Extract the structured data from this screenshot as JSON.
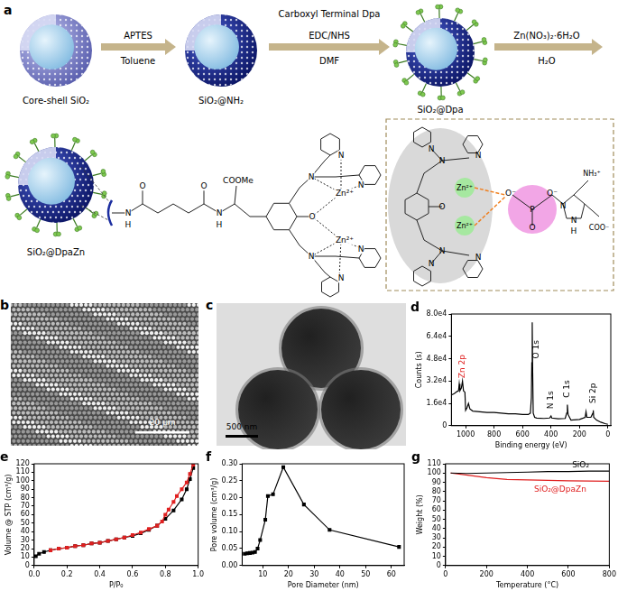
{
  "panels": {
    "a": {
      "label": "a",
      "particles": [
        "Core-shell SiO₂",
        "SiO₂@NH₂",
        "SiO₂@Dpa",
        "SiO₂@DpaZn"
      ],
      "steps": [
        {
          "reagent": "APTES",
          "solvent": "Toluene"
        },
        {
          "reagent": "Carboxyl Terminal Dpa",
          "coupling": "EDC/NHS",
          "solvent": "DMF"
        },
        {
          "reagent": "Zn(NO₃)₂·6H₂O",
          "solvent": "H₂O"
        }
      ],
      "ligand_atoms": [
        "N",
        "H",
        "O",
        "O",
        "N",
        "H",
        "COOMe",
        "O",
        "N",
        "N",
        "N",
        "N",
        "N",
        "N",
        "Zn²⁺",
        "Zn²⁺"
      ],
      "complex_atoms": [
        "N",
        "N",
        "N",
        "N",
        "N",
        "N",
        "O",
        "Zn²⁺",
        "Zn²⁺",
        "O⁻",
        "P",
        "O⁻",
        "O",
        "N",
        "N",
        "H",
        "NH₃⁺",
        "COO⁻"
      ]
    },
    "b": {
      "label": "b",
      "scale_bar": "20 μm"
    },
    "c": {
      "label": "c",
      "scale_bar": "500 nm"
    },
    "d": {
      "label": "d"
    },
    "e": {
      "label": "e"
    },
    "f": {
      "label": "f"
    },
    "g": {
      "label": "g"
    }
  },
  "chart_data": [
    {
      "type": "line",
      "xlabel": "Binding energy (eV)",
      "ylabel": "Counts (s)",
      "xlim": [
        1100,
        -20
      ],
      "ylim": [
        0,
        80000
      ],
      "xticks": [
        1000,
        800,
        600,
        400,
        200,
        0
      ],
      "yticks": [
        0,
        {
          "value": 16000,
          "label": "1.6e4"
        },
        {
          "value": 32000,
          "label": "3.2e4"
        },
        {
          "value": 48000,
          "label": "4.8e4"
        },
        {
          "value": 64000,
          "label": "6.4e4"
        },
        {
          "value": 80000,
          "label": "8.0e4"
        }
      ],
      "x": [
        1100,
        1080,
        1060,
        1050,
        1045,
        1040,
        1030,
        1022,
        1015,
        1005,
        1000,
        990,
        980,
        970,
        950,
        900,
        850,
        800,
        750,
        700,
        650,
        600,
        560,
        545,
        538,
        535,
        532,
        529,
        525,
        515,
        500,
        450,
        410,
        400,
        395,
        350,
        300,
        290,
        285,
        280,
        260,
        200,
        160,
        154,
        148,
        120,
        106,
        103,
        100,
        80,
        50,
        20,
        0
      ],
      "series": [
        {
          "color": "#000000",
          "values": [
            22000,
            23000,
            24500,
            25000,
            30000,
            25000,
            27000,
            32000,
            25000,
            24000,
            11000,
            13000,
            16000,
            12000,
            10500,
            10000,
            9500,
            9500,
            9000,
            8500,
            8500,
            8000,
            8000,
            9000,
            20000,
            45000,
            74000,
            40000,
            9000,
            6000,
            5500,
            5200,
            5500,
            7000,
            5500,
            5000,
            5200,
            9000,
            15000,
            8000,
            4000,
            4500,
            6000,
            10000,
            6000,
            6000,
            9000,
            11000,
            6000,
            4000,
            2500,
            1500,
            1000
          ]
        }
      ],
      "annotations": [
        {
          "text": "Zn 2p",
          "x": 1020,
          "y": 34000,
          "color": "#e02020"
        },
        {
          "text": "O 1s",
          "x": 505,
          "y": 48000,
          "color": "#000000"
        },
        {
          "text": "N 1s",
          "x": 400,
          "y": 12000,
          "color": "#000000"
        },
        {
          "text": "C 1s",
          "x": 285,
          "y": 20000,
          "color": "#000000"
        },
        {
          "text": "Si 2p",
          "x": 103,
          "y": 16000,
          "color": "#000000"
        }
      ]
    },
    {
      "type": "line",
      "xlabel": "P/P₀",
      "ylabel": "Volume @ STP (cm³/g)",
      "xlim": [
        0,
        1
      ],
      "ylim": [
        0,
        120
      ],
      "xticks": [
        {
          "value": 0,
          "label": "0.0"
        },
        0.2,
        0.4,
        0.6,
        0.8,
        {
          "value": 1,
          "label": "1.0"
        }
      ],
      "yticks": [
        0,
        10,
        20,
        30,
        40,
        50,
        60,
        70,
        80,
        90,
        100,
        110,
        120
      ],
      "series": [
        {
          "color": "#e02020",
          "marker": "square",
          "x": [
            0.97,
            0.95,
            0.93,
            0.9,
            0.87,
            0.85,
            0.82,
            0.8,
            0.78,
            0.75,
            0.7,
            0.65,
            0.6,
            0.55,
            0.5,
            0.45,
            0.4,
            0.35,
            0.3,
            0.25,
            0.2,
            0.15,
            0.1
          ],
          "values": [
            119,
            108,
            98,
            90,
            82,
            75,
            66,
            60,
            52,
            47,
            43,
            39,
            36,
            33,
            31,
            29,
            27,
            26,
            24,
            23,
            21,
            20,
            18
          ]
        },
        {
          "color": "#000000",
          "marker": "square",
          "x": [
            0.01,
            0.03,
            0.06,
            0.1,
            0.15,
            0.2,
            0.25,
            0.3,
            0.35,
            0.4,
            0.45,
            0.5,
            0.55,
            0.6,
            0.65,
            0.7,
            0.75,
            0.8,
            0.85,
            0.9,
            0.93,
            0.95,
            0.97
          ],
          "values": [
            11,
            14,
            16,
            18,
            20,
            21,
            23,
            24,
            26,
            27,
            29,
            31,
            33,
            35,
            38,
            42,
            47,
            55,
            65,
            78,
            90,
            102,
            115
          ]
        }
      ]
    },
    {
      "type": "line",
      "xlabel": "Pore Diameter (nm)",
      "ylabel": "Pore volume (cm³/g)",
      "xlim": [
        2,
        65
      ],
      "ylim": [
        0,
        0.3
      ],
      "xticks": [
        10,
        20,
        30,
        40,
        50,
        60
      ],
      "yticks": [
        {
          "value": 0,
          "label": "0.00"
        },
        0.05,
        {
          "value": 0.1,
          "label": "0.10"
        },
        0.15,
        {
          "value": 0.2,
          "label": "0.20"
        },
        0.25,
        {
          "value": 0.3,
          "label": "0.30"
        }
      ],
      "x": [
        3,
        4,
        5,
        6,
        7,
        8,
        9,
        11,
        12,
        14,
        18,
        26,
        36,
        63
      ],
      "series": [
        {
          "color": "#000000",
          "marker": "square",
          "values": [
            0.035,
            0.036,
            0.037,
            0.038,
            0.04,
            0.05,
            0.075,
            0.135,
            0.205,
            0.21,
            0.29,
            0.18,
            0.105,
            0.055
          ]
        }
      ]
    },
    {
      "type": "line",
      "xlabel": "Temperature (°C)",
      "ylabel": "Weight (%)",
      "xlim": [
        0,
        800
      ],
      "ylim": [
        0,
        110
      ],
      "xticks": [
        0,
        200,
        400,
        600,
        800
      ],
      "yticks": [
        0,
        10,
        20,
        30,
        40,
        50,
        60,
        70,
        80,
        90,
        100,
        110
      ],
      "x": [
        25,
        100,
        200,
        300,
        400,
        500,
        600,
        700,
        800
      ],
      "series": [
        {
          "color": "#000000",
          "values": [
            100,
            99.5,
            100,
            100.5,
            101,
            101.5,
            101.5,
            102,
            102
          ]
        },
        {
          "color": "#e02020",
          "values": [
            100,
            98,
            95,
            93,
            92.5,
            92,
            91.5,
            91.3,
            91.2
          ]
        }
      ],
      "annotations": [
        {
          "text": "SiO₂",
          "x": 660,
          "y": 108,
          "color": "#000000"
        },
        {
          "text": "SiO₂@DpaZn",
          "x": 560,
          "y": 82,
          "color": "#e02020"
        }
      ]
    }
  ]
}
